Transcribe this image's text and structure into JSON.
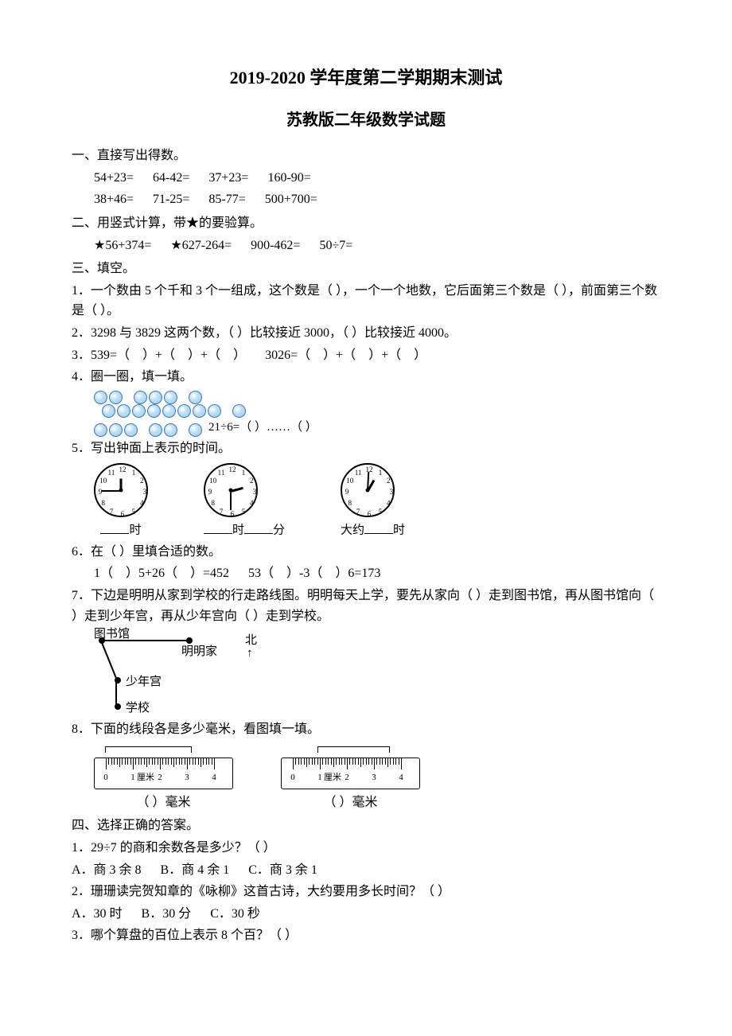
{
  "title_main": "2019-2020 学年度第二学期期末测试",
  "title_sub": "苏教版二年级数学试题",
  "s1": {
    "head": "一、直接写出得数。",
    "row1": "54+23=      64-42=      37+23=      160-90=",
    "row2": "38+46=      71-25=      85-77=      500+700="
  },
  "s2": {
    "head": "二、用竖式计算，带★的要验算。",
    "row": "★56+374=      ★627-264=      900-462=      50÷7="
  },
  "s3": {
    "head": "三、填空。",
    "q1": "1．一个数由 5 个千和 3 个一组成，这个数是（    ），一个一个地数，它后面第三个数是（    ），前面第三个数是（    ）。",
    "q2": "2．3298 与 3829 这两个数，（    ）比较接近 3000，（    ）比较接近 4000。",
    "q3": "3．539=（    ）+（    ）+（    ）      3026=（    ）+（    ）+（    ）",
    "q4": "4．圈一圈，填一填。",
    "q4_expr": "21÷6=（    ）……（    ）",
    "q5": "5．写出钟面上表示的时间。",
    "clock_labels": {
      "a_pre": "",
      "a": "时",
      "b_pre": "",
      "b_mid": "时",
      "b_suf": "分",
      "c_pre": "大约",
      "c": "时"
    },
    "q6": "6．在（    ）里填合适的数。",
    "q6_row": "1（    ）5+26（    ）=452      53（    ）-3（    ）6=173",
    "q7": "7．下边是明明从家到学校的行走路线图。明明每天上学，要先从家向（    ）走到图书馆，再从图书馆向（    ）走到少年宫，再从少年宫向（    ）走到学校。",
    "map": {
      "lib": "图书馆",
      "home": "明明家",
      "palace": "少年宫",
      "school": "学校",
      "north": "北",
      "arrow": "↑"
    },
    "q8": "8．下面的线段各是多少毫米，看图填一填。",
    "ruler_caption": "（    ）毫米"
  },
  "s4": {
    "head": "四、选择正确的答案。",
    "q1": "1．29÷7 的商和余数各是多少？（    ）",
    "q1_opts": "A．商 3 余 8      B．商 4 余 1      C．商 3 余 1",
    "q2": "2．珊珊读完贺知章的《咏柳》这首古诗，大约要用多长时间？（    ）",
    "q2_opts": "A．30 时      B．30 分      C．30 秒",
    "q3": "3．哪个算盘的百位上表示 8 个百？（    ）"
  },
  "clock": {
    "numbers": [
      "12",
      "1",
      "2",
      "3",
      "4",
      "5",
      "6",
      "7",
      "8",
      "9",
      "10",
      "11"
    ],
    "hands": {
      "a": {
        "hour_deg": -90,
        "min_deg": -180
      },
      "b": {
        "hour_deg": -15,
        "min_deg": 90
      },
      "c": {
        "hour_deg": -60,
        "min_deg": -87
      }
    }
  },
  "ruler": {
    "labels": [
      "0",
      "1",
      "2",
      "3",
      "4"
    ],
    "cm_text": "厘米",
    "a_bracket_left_pct": 8,
    "a_bracket_width_pct": 62,
    "b_bracket_left_pct": 26,
    "b_bracket_width_pct": 52
  },
  "colors": {
    "text": "#000000",
    "bg": "#ffffff",
    "dot_stroke": "#3b78b8"
  }
}
